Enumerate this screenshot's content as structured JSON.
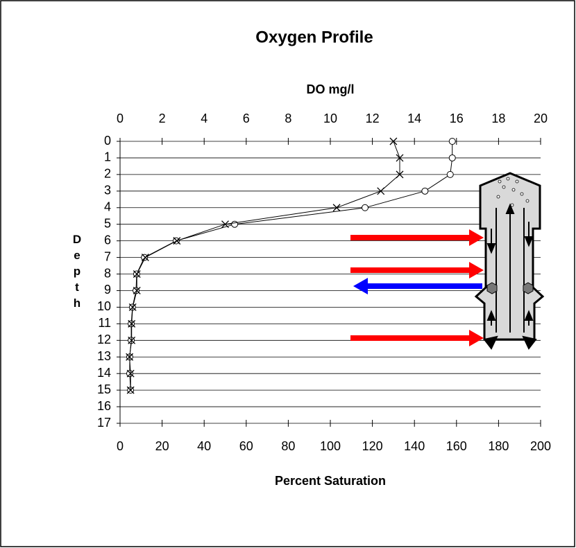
{
  "chart_data": {
    "type": "line",
    "title": "Oxygen Profile",
    "x2_label": "DO mg/l",
    "x_label": "Percent Saturation",
    "y_label": "Depth",
    "depth": [
      0,
      1,
      2,
      3,
      4,
      5,
      6,
      7,
      8,
      9,
      10,
      11,
      12,
      13,
      14,
      15
    ],
    "xlim": [
      0,
      200
    ],
    "xticks": [
      0,
      20,
      40,
      60,
      80,
      100,
      120,
      140,
      160,
      180,
      200
    ],
    "x2lim": [
      0,
      20
    ],
    "x2ticks": [
      0,
      2,
      4,
      6,
      8,
      10,
      12,
      14,
      16,
      18,
      20
    ],
    "ylim": [
      0,
      17
    ],
    "y_inverted": true,
    "yticks": [
      0,
      1,
      2,
      3,
      4,
      5,
      6,
      7,
      8,
      9,
      10,
      11,
      12,
      13,
      14,
      15,
      16,
      17
    ],
    "grid": true,
    "series": [
      {
        "color": "#000000",
        "marker": "circle",
        "axis": "x",
        "values": [
          158,
          158,
          157,
          145,
          116.5,
          54.5,
          26.7,
          11.6,
          7.9,
          7.6,
          5.9,
          5.3,
          5.3,
          4.6,
          4.6,
          5.0
        ]
      },
      {
        "color": "#000000",
        "marker": "cross",
        "axis": "x2",
        "values": [
          13.0,
          13.3,
          13.3,
          12.4,
          10.3,
          5.0,
          2.7,
          1.2,
          0.8,
          0.8,
          0.6,
          0.55,
          0.55,
          0.45,
          0.5,
          0.5
        ]
      }
    ]
  }
}
